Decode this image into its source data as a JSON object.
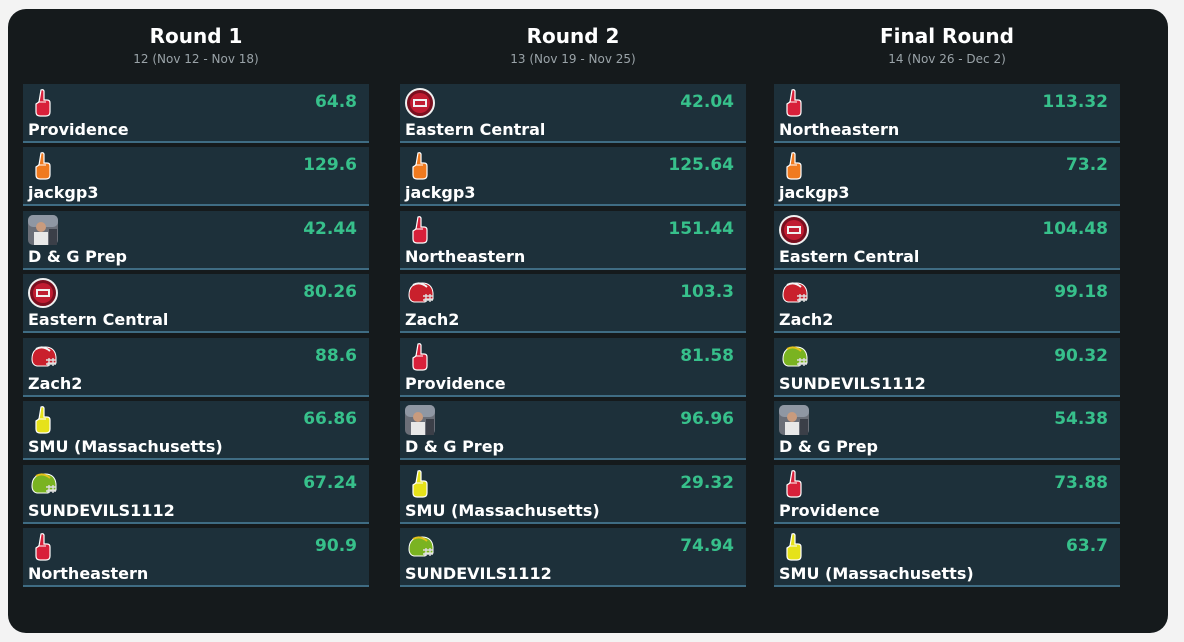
{
  "rounds": [
    {
      "title": "Round 1",
      "subtitle": "12 (Nov 12 - Nov 18)",
      "teams": [
        {
          "name": "Providence",
          "score": "64.8",
          "icon": "foam-finger-red-icon"
        },
        {
          "name": "jackgp3",
          "score": "129.6",
          "icon": "foam-finger-orange-icon"
        },
        {
          "name": "D & G Prep",
          "score": "42.44",
          "icon": "photo-avatar-icon"
        },
        {
          "name": "Eastern Central",
          "score": "80.26",
          "icon": "eastern-central-logo-icon"
        },
        {
          "name": "Zach2",
          "score": "88.6",
          "icon": "red-helmet-icon"
        },
        {
          "name": "SMU (Massachusetts)",
          "score": "66.86",
          "icon": "foam-finger-yellow-icon"
        },
        {
          "name": "SUNDEVILS1112",
          "score": "67.24",
          "icon": "green-helmet-icon"
        },
        {
          "name": "Northeastern",
          "score": "90.9",
          "icon": "foam-finger-red-icon"
        }
      ]
    },
    {
      "title": "Round 2",
      "subtitle": "13 (Nov 19 - Nov 25)",
      "teams": [
        {
          "name": "Eastern Central",
          "score": "42.04",
          "icon": "eastern-central-logo-icon"
        },
        {
          "name": "jackgp3",
          "score": "125.64",
          "icon": "foam-finger-orange-icon"
        },
        {
          "name": "Northeastern",
          "score": "151.44",
          "icon": "foam-finger-red-icon"
        },
        {
          "name": "Zach2",
          "score": "103.3",
          "icon": "red-helmet-icon"
        },
        {
          "name": "Providence",
          "score": "81.58",
          "icon": "foam-finger-red-icon"
        },
        {
          "name": "D & G Prep",
          "score": "96.96",
          "icon": "photo-avatar-icon"
        },
        {
          "name": "SMU (Massachusetts)",
          "score": "29.32",
          "icon": "foam-finger-yellow-icon"
        },
        {
          "name": "SUNDEVILS1112",
          "score": "74.94",
          "icon": "green-helmet-icon"
        }
      ]
    },
    {
      "title": "Final Round",
      "subtitle": "14 (Nov 26 - Dec 2)",
      "teams": [
        {
          "name": "Northeastern",
          "score": "113.32",
          "icon": "foam-finger-red-icon"
        },
        {
          "name": "jackgp3",
          "score": "73.2",
          "icon": "foam-finger-orange-icon"
        },
        {
          "name": "Eastern Central",
          "score": "104.48",
          "icon": "eastern-central-logo-icon"
        },
        {
          "name": "Zach2",
          "score": "99.18",
          "icon": "red-helmet-icon"
        },
        {
          "name": "SUNDEVILS1112",
          "score": "90.32",
          "icon": "green-helmet-icon"
        },
        {
          "name": "D & G Prep",
          "score": "54.38",
          "icon": "photo-avatar-icon"
        },
        {
          "name": "Providence",
          "score": "73.88",
          "icon": "foam-finger-red-icon"
        },
        {
          "name": "SMU (Massachusetts)",
          "score": "63.7",
          "icon": "foam-finger-yellow-icon"
        }
      ]
    }
  ],
  "colors": {
    "panel": "#151a1c",
    "card": "#1d303a",
    "card_border": "#3f6c83",
    "score": "#37c08b"
  }
}
